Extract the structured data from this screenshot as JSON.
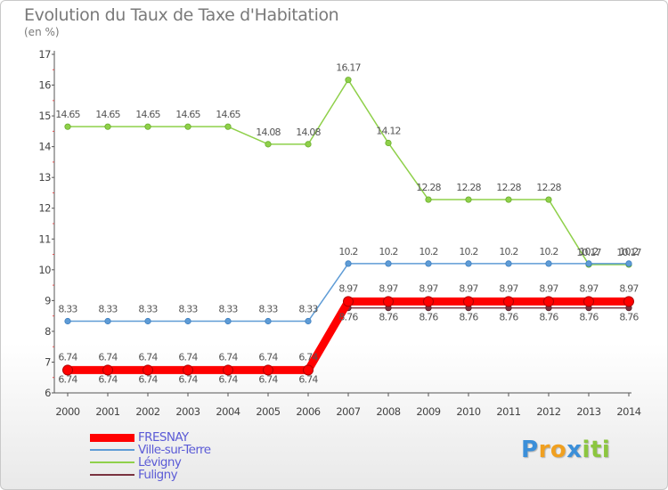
{
  "chart_data": {
    "type": "line",
    "title": "Evolution du Taux de Taxe d'Habitation",
    "subtitle": "(en %)",
    "xlabel": "",
    "ylabel": "",
    "x": [
      "2000",
      "2001",
      "2002",
      "2003",
      "2004",
      "2005",
      "2006",
      "2007",
      "2008",
      "2009",
      "2010",
      "2011",
      "2012",
      "2013",
      "2014"
    ],
    "ylim": [
      6,
      17
    ],
    "yticks": [
      "6",
      "7",
      "8",
      "9",
      "10",
      "11",
      "12",
      "13",
      "14",
      "15",
      "16",
      "17"
    ],
    "grid": false,
    "legend_position": "bottom-left",
    "series": [
      {
        "name": "FRESNAY",
        "color": "#ff0000",
        "values": [
          6.74,
          6.74,
          6.74,
          6.74,
          6.74,
          6.74,
          6.74,
          8.97,
          8.97,
          8.97,
          8.97,
          8.97,
          8.97,
          8.97,
          8.97
        ],
        "labels": [
          "6.74",
          "6.74",
          "6.74",
          "6.74",
          "6.74",
          "6.74",
          "6.74",
          "8.97",
          "8.97",
          "8.97",
          "8.97",
          "8.97",
          "8.97",
          "8.97",
          "8.97"
        ]
      },
      {
        "name": "Ville-sur-Terre",
        "color": "#5f9cd6",
        "values": [
          8.33,
          8.33,
          8.33,
          8.33,
          8.33,
          8.33,
          8.33,
          10.2,
          10.2,
          10.2,
          10.2,
          10.2,
          10.2,
          10.2,
          10.2
        ],
        "labels": [
          "8.33",
          "8.33",
          "8.33",
          "8.33",
          "8.33",
          "8.33",
          "8.33",
          "10.2",
          "10.2",
          "10.2",
          "10.2",
          "10.2",
          "10.2",
          "10.2",
          "10.2"
        ]
      },
      {
        "name": "Lévigny",
        "color": "#8fd04a",
        "values": [
          14.65,
          14.65,
          14.65,
          14.65,
          14.65,
          14.08,
          14.08,
          16.17,
          14.12,
          12.28,
          12.28,
          12.28,
          12.28,
          10.17,
          10.17
        ],
        "labels": [
          "14.65",
          "14.65",
          "14.65",
          "14.65",
          "14.65",
          "14.08",
          "14.08",
          "16.17",
          "14.12",
          "12.28",
          "12.28",
          "12.28",
          "12.28",
          "10.17",
          "10.17"
        ]
      },
      {
        "name": "Fuligny",
        "color": "#7a3340",
        "values": [
          6.74,
          6.74,
          6.74,
          6.74,
          6.74,
          6.74,
          6.74,
          8.76,
          8.76,
          8.76,
          8.76,
          8.76,
          8.76,
          8.76,
          8.76
        ],
        "labels": [
          "6.74",
          "6.74",
          "6.74",
          "6.74",
          "6.74",
          "6.74",
          "6.74",
          "8.76",
          "8.76",
          "8.76",
          "8.76",
          "8.76",
          "8.76",
          "8.76",
          "8.76"
        ]
      }
    ]
  },
  "legend": {
    "items": [
      {
        "label": "FRESNAY",
        "color": "#ff0000",
        "text_color": "#5b5bd6"
      },
      {
        "label": "Ville-sur-Terre",
        "color": "#5f9cd6",
        "text_color": "#5b5bd6"
      },
      {
        "label": "Lévigny",
        "color": "#8fd04a",
        "text_color": "#5b5bd6"
      },
      {
        "label": "Fuligny",
        "color": "#7a3340",
        "text_color": "#5b5bd6"
      }
    ]
  },
  "logo": {
    "letters": [
      "P",
      "r",
      "o",
      "x",
      "i",
      "t",
      "i"
    ],
    "colors": [
      "#3b8fd9",
      "#f0a020",
      "#f0a020",
      "#3b8fd9",
      "#8cc63f",
      "#8cc63f",
      "#8cc63f"
    ]
  }
}
